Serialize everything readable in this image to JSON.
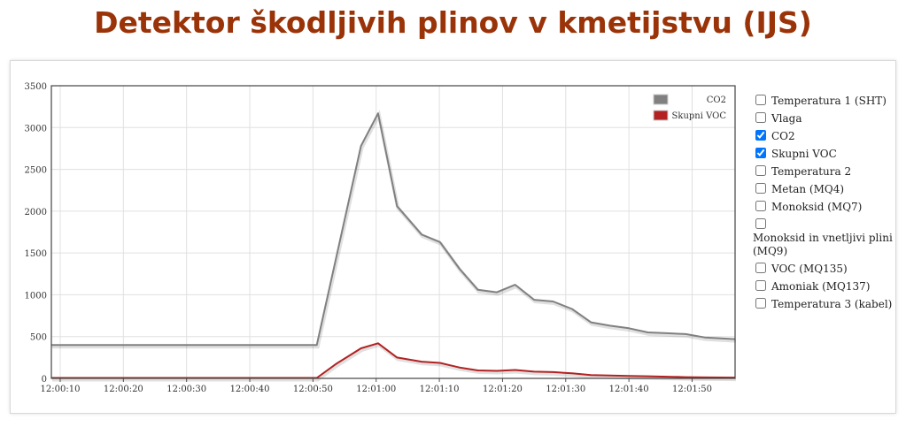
{
  "page": {
    "title": "Detektor škodljivih plinov v kmetijstvu (IJS)"
  },
  "chart_data": {
    "type": "line",
    "title": "",
    "xlabel": "",
    "ylabel": "",
    "ylim": [
      0,
      3500
    ],
    "yticks": [
      "0",
      "500",
      "1000",
      "1500",
      "2000",
      "2500",
      "3000",
      "3500"
    ],
    "xticks": [
      "12:00:10",
      "12:00:20",
      "12:00:30",
      "12:00:40",
      "12:00:50",
      "12:01:00",
      "12:01:10",
      "12:01:20",
      "12:01:30",
      "12:01:40",
      "12:01:50"
    ],
    "xlim_seconds": [
      8.6,
      116.8
    ],
    "grid": true,
    "legend_position": "top-right",
    "series": [
      {
        "name": "CO2",
        "color": "#808080",
        "points": [
          [
            "12:00:08.6",
            400
          ],
          [
            "12:00:50.6",
            400
          ],
          [
            "12:00:57.6",
            2780
          ],
          [
            "12:01:00.3",
            3170
          ],
          [
            "12:01:03.3",
            2060
          ],
          [
            "12:01:07.2",
            1720
          ],
          [
            "12:01:10.1",
            1630
          ],
          [
            "12:01:13.2",
            1310
          ],
          [
            "12:01:16.1",
            1060
          ],
          [
            "12:01:19.1",
            1030
          ],
          [
            "12:01:22.0",
            1120
          ],
          [
            "12:01:25.0",
            940
          ],
          [
            "12:01:28.0",
            920
          ],
          [
            "12:01:31.0",
            830
          ],
          [
            "12:01:34.0",
            670
          ],
          [
            "12:01:37.0",
            630
          ],
          [
            "12:01:40.0",
            600
          ],
          [
            "12:01:43.0",
            550
          ],
          [
            "12:01:46.0",
            540
          ],
          [
            "12:01:49.0",
            530
          ],
          [
            "12:01:52.0",
            490
          ],
          [
            "12:01:56.8",
            470
          ]
        ]
      },
      {
        "name": "Skupni VOC",
        "color": "#b22222",
        "points": [
          [
            "12:00:08.6",
            5
          ],
          [
            "12:00:50.6",
            5
          ],
          [
            "12:00:53.6",
            170
          ],
          [
            "12:00:57.6",
            360
          ],
          [
            "12:01:00.3",
            420
          ],
          [
            "12:01:03.3",
            250
          ],
          [
            "12:01:07.2",
            200
          ],
          [
            "12:01:10.1",
            185
          ],
          [
            "12:01:13.2",
            130
          ],
          [
            "12:01:16.1",
            95
          ],
          [
            "12:01:19.1",
            90
          ],
          [
            "12:01:22.0",
            100
          ],
          [
            "12:01:25.0",
            80
          ],
          [
            "12:01:28.0",
            75
          ],
          [
            "12:01:31.0",
            60
          ],
          [
            "12:01:34.0",
            40
          ],
          [
            "12:01:37.0",
            35
          ],
          [
            "12:01:40.0",
            30
          ],
          [
            "12:01:43.0",
            25
          ],
          [
            "12:01:46.0",
            20
          ],
          [
            "12:01:49.0",
            15
          ],
          [
            "12:01:52.0",
            12
          ],
          [
            "12:01:56.8",
            10
          ]
        ]
      }
    ]
  },
  "series_selector": {
    "items": [
      {
        "label": "Temperatura 1 (SHT)",
        "checked": false
      },
      {
        "label": "Vlaga",
        "checked": false
      },
      {
        "label": "CO2",
        "checked": true
      },
      {
        "label": "Skupni VOC",
        "checked": true
      },
      {
        "label": "Temperatura 2",
        "checked": false
      },
      {
        "label": "Metan (MQ4)",
        "checked": false
      },
      {
        "label": "Monoksid (MQ7)",
        "checked": false
      },
      {
        "label": "Monoksid in vnetljivi plini (MQ9)",
        "checked": false
      },
      {
        "label": "VOC (MQ135)",
        "checked": false
      },
      {
        "label": "Amoniak (MQ137)",
        "checked": false
      },
      {
        "label": "Temperatura 3 (kabel)",
        "checked": false
      }
    ]
  }
}
